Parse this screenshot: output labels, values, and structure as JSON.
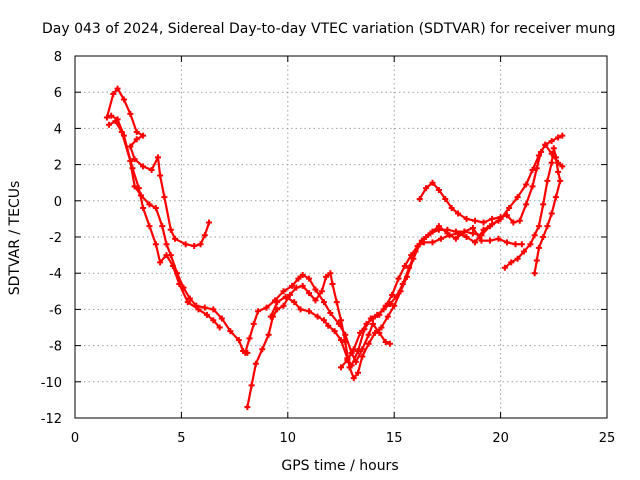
{
  "chart_data": {
    "type": "scatter",
    "title": "Day 043 of 2024, Sidereal Day-to-day VTEC variation (SDTVAR) for receiver mung",
    "xlabel": "GPS time / hours",
    "ylabel": "SDTVAR / TECUs",
    "xlim": [
      0,
      25
    ],
    "ylim": [
      -12,
      8
    ],
    "xticks": [
      "0",
      "5",
      "10",
      "15",
      "20",
      "25"
    ],
    "yticks": [
      "8",
      "6",
      "4",
      "2",
      "0",
      "-2",
      "-4",
      "-6",
      "-8",
      "-10",
      "-12"
    ],
    "grid": true,
    "marker": "plus",
    "color": "#ff0000",
    "series": [
      {
        "points": [
          [
            1.5,
            4.6
          ],
          [
            1.8,
            5.9
          ],
          [
            2.0,
            6.2
          ],
          [
            2.3,
            5.6
          ],
          [
            2.6,
            4.8
          ],
          [
            2.9,
            3.8
          ],
          [
            3.2,
            3.6
          ],
          [
            2.9,
            3.4
          ],
          [
            2.6,
            3.0
          ],
          [
            2.8,
            2.3
          ],
          [
            3.2,
            1.9
          ],
          [
            3.6,
            1.7
          ],
          [
            3.9,
            2.4
          ],
          [
            4.0,
            1.4
          ],
          [
            4.2,
            0.2
          ],
          [
            4.5,
            -1.6
          ],
          [
            4.7,
            -2.1
          ],
          [
            5.2,
            -2.4
          ],
          [
            5.6,
            -2.5
          ],
          [
            5.9,
            -2.4
          ],
          [
            6.1,
            -1.9
          ],
          [
            6.3,
            -1.2
          ]
        ]
      },
      {
        "points": [
          [
            1.6,
            4.2
          ],
          [
            1.9,
            4.4
          ],
          [
            2.2,
            3.8
          ],
          [
            2.6,
            2.2
          ],
          [
            2.8,
            0.8
          ],
          [
            3.1,
            0.3
          ],
          [
            3.5,
            -0.2
          ],
          [
            3.8,
            -0.4
          ],
          [
            4.1,
            -1.4
          ],
          [
            4.3,
            -2.4
          ],
          [
            4.5,
            -3.0
          ],
          [
            4.8,
            -4.0
          ],
          [
            5.1,
            -4.8
          ],
          [
            5.4,
            -5.4
          ],
          [
            5.7,
            -5.8
          ],
          [
            6.1,
            -5.9
          ],
          [
            6.5,
            -6.0
          ],
          [
            6.9,
            -6.5
          ],
          [
            7.3,
            -7.2
          ],
          [
            7.7,
            -7.7
          ],
          [
            7.9,
            -8.3
          ],
          [
            8.1,
            -8.4
          ]
        ]
      },
      {
        "points": [
          [
            1.7,
            4.7
          ],
          [
            2.0,
            4.5
          ],
          [
            2.3,
            3.6
          ],
          [
            2.7,
            1.8
          ],
          [
            3.0,
            0.7
          ],
          [
            3.2,
            -0.4
          ],
          [
            3.5,
            -1.4
          ],
          [
            3.8,
            -2.4
          ],
          [
            4.0,
            -3.4
          ],
          [
            4.3,
            -3.0
          ],
          [
            4.6,
            -3.6
          ],
          [
            4.9,
            -4.6
          ],
          [
            5.3,
            -5.6
          ],
          [
            5.8,
            -6.0
          ],
          [
            6.2,
            -6.3
          ],
          [
            6.5,
            -6.6
          ],
          [
            6.8,
            -7.0
          ]
        ]
      },
      {
        "points": [
          [
            8.0,
            -8.4
          ],
          [
            8.2,
            -7.6
          ],
          [
            8.4,
            -6.8
          ],
          [
            8.6,
            -6.1
          ],
          [
            9.0,
            -5.9
          ],
          [
            9.4,
            -5.5
          ],
          [
            9.8,
            -5.0
          ],
          [
            10.2,
            -4.7
          ],
          [
            10.5,
            -4.3
          ],
          [
            10.7,
            -4.1
          ],
          [
            11.0,
            -4.3
          ],
          [
            11.3,
            -4.9
          ],
          [
            11.7,
            -5.6
          ],
          [
            12.0,
            -6.2
          ],
          [
            12.4,
            -6.8
          ],
          [
            12.7,
            -7.4
          ],
          [
            13.0,
            -8.4
          ],
          [
            13.2,
            -8.9
          ],
          [
            13.5,
            -8.2
          ],
          [
            13.8,
            -7.4
          ],
          [
            14.0,
            -6.8
          ],
          [
            14.3,
            -7.3
          ],
          [
            14.6,
            -7.8
          ],
          [
            14.8,
            -7.9
          ]
        ]
      },
      {
        "points": [
          [
            8.1,
            -11.4
          ],
          [
            8.3,
            -10.2
          ],
          [
            8.5,
            -9.0
          ],
          [
            8.8,
            -8.2
          ],
          [
            9.1,
            -7.4
          ],
          [
            9.3,
            -6.4
          ],
          [
            9.5,
            -6.0
          ],
          [
            9.8,
            -5.8
          ],
          [
            10.1,
            -5.2
          ],
          [
            10.4,
            -4.8
          ],
          [
            10.7,
            -4.7
          ],
          [
            11.0,
            -5.1
          ],
          [
            11.3,
            -5.5
          ],
          [
            11.6,
            -5.0
          ],
          [
            11.8,
            -4.2
          ],
          [
            12.0,
            -4.0
          ],
          [
            12.1,
            -4.6
          ],
          [
            12.3,
            -5.6
          ],
          [
            12.5,
            -6.6
          ],
          [
            12.7,
            -7.8
          ],
          [
            12.9,
            -9.2
          ],
          [
            13.1,
            -9.8
          ],
          [
            13.3,
            -9.5
          ],
          [
            13.5,
            -8.6
          ],
          [
            13.8,
            -7.9
          ],
          [
            14.1,
            -7.3
          ],
          [
            14.4,
            -7.0
          ],
          [
            14.7,
            -6.4
          ],
          [
            15.0,
            -5.8
          ],
          [
            15.3,
            -5.0
          ],
          [
            15.6,
            -4.2
          ],
          [
            15.9,
            -3.2
          ],
          [
            16.2,
            -2.4
          ],
          [
            16.5,
            -2.0
          ],
          [
            16.8,
            -1.7
          ],
          [
            17.1,
            -1.4
          ],
          [
            17.5,
            -1.8
          ],
          [
            17.9,
            -2.1
          ],
          [
            18.3,
            -1.7
          ],
          [
            18.7,
            -1.5
          ],
          [
            19.1,
            -2.2
          ],
          [
            19.5,
            -2.2
          ],
          [
            19.9,
            -2.1
          ],
          [
            20.3,
            -2.3
          ],
          [
            20.7,
            -2.4
          ],
          [
            21.0,
            -2.4
          ]
        ]
      },
      {
        "points": [
          [
            9.2,
            -6.4
          ],
          [
            9.5,
            -5.6
          ],
          [
            9.9,
            -5.3
          ],
          [
            10.3,
            -5.6
          ],
          [
            10.6,
            -6.0
          ],
          [
            11.0,
            -6.1
          ],
          [
            11.4,
            -6.4
          ],
          [
            11.7,
            -6.6
          ],
          [
            11.9,
            -6.9
          ],
          [
            12.2,
            -7.2
          ],
          [
            12.5,
            -7.7
          ],
          [
            12.8,
            -8.7
          ],
          [
            13.0,
            -9.1
          ],
          [
            13.3,
            -8.3
          ],
          [
            13.6,
            -7.1
          ],
          [
            13.9,
            -6.5
          ],
          [
            14.2,
            -6.3
          ],
          [
            14.5,
            -6.0
          ],
          [
            14.8,
            -5.7
          ],
          [
            15.1,
            -5.3
          ],
          [
            15.4,
            -4.6
          ],
          [
            15.7,
            -3.7
          ],
          [
            16.0,
            -2.8
          ],
          [
            16.3,
            -2.2
          ],
          [
            16.7,
            -1.8
          ],
          [
            17.1,
            -1.6
          ],
          [
            17.5,
            -1.6
          ],
          [
            17.9,
            -1.7
          ],
          [
            18.3,
            -1.7
          ],
          [
            18.7,
            -1.8
          ],
          [
            19.1,
            -1.9
          ],
          [
            19.5,
            -1.4
          ],
          [
            19.9,
            -1.1
          ]
        ]
      },
      {
        "points": [
          [
            12.5,
            -9.2
          ],
          [
            12.8,
            -8.8
          ],
          [
            13.1,
            -8.2
          ],
          [
            13.4,
            -7.3
          ],
          [
            13.7,
            -6.8
          ],
          [
            14.0,
            -6.5
          ],
          [
            14.3,
            -6.3
          ],
          [
            14.6,
            -5.8
          ],
          [
            14.9,
            -5.2
          ],
          [
            15.2,
            -4.3
          ],
          [
            15.5,
            -3.6
          ],
          [
            15.8,
            -3.0
          ],
          [
            16.1,
            -2.5
          ],
          [
            16.4,
            -2.3
          ],
          [
            16.8,
            -2.3
          ],
          [
            17.2,
            -2.1
          ],
          [
            17.6,
            -1.9
          ],
          [
            18.0,
            -1.8
          ],
          [
            18.4,
            -2.0
          ],
          [
            18.8,
            -2.3
          ],
          [
            19.2,
            -1.6
          ],
          [
            19.6,
            -1.3
          ],
          [
            20.0,
            -1.0
          ],
          [
            20.4,
            -0.4
          ],
          [
            20.8,
            0.2
          ],
          [
            21.2,
            0.9
          ],
          [
            21.5,
            1.7
          ],
          [
            21.8,
            2.5
          ],
          [
            22.1,
            3.1
          ],
          [
            22.4,
            3.3
          ],
          [
            22.7,
            3.5
          ],
          [
            22.9,
            3.6
          ]
        ]
      },
      {
        "points": [
          [
            16.2,
            0.1
          ],
          [
            16.5,
            0.7
          ],
          [
            16.8,
            1.0
          ],
          [
            17.1,
            0.6
          ],
          [
            17.4,
            0.1
          ],
          [
            17.7,
            -0.4
          ],
          [
            18.0,
            -0.7
          ],
          [
            18.4,
            -1.0
          ],
          [
            18.8,
            -1.1
          ],
          [
            19.2,
            -1.2
          ],
          [
            19.6,
            -1.0
          ],
          [
            20.0,
            -0.9
          ],
          [
            20.3,
            -0.8
          ],
          [
            20.6,
            -1.2
          ],
          [
            20.9,
            -1.1
          ],
          [
            21.2,
            -0.2
          ],
          [
            21.5,
            0.8
          ],
          [
            21.7,
            1.8
          ],
          [
            21.9,
            2.7
          ],
          [
            22.1,
            3.1
          ],
          [
            22.4,
            2.6
          ],
          [
            22.7,
            2.1
          ],
          [
            22.9,
            1.9
          ]
        ]
      },
      {
        "points": [
          [
            20.2,
            -3.7
          ],
          [
            20.5,
            -3.4
          ],
          [
            20.8,
            -3.2
          ],
          [
            21.1,
            -2.8
          ],
          [
            21.4,
            -2.4
          ],
          [
            21.6,
            -1.9
          ],
          [
            21.8,
            -1.4
          ],
          [
            22.0,
            -0.2
          ],
          [
            22.2,
            1.1
          ],
          [
            22.4,
            2.1
          ],
          [
            22.5,
            2.9
          ],
          [
            22.6,
            2.4
          ],
          [
            22.7,
            1.6
          ],
          [
            22.8,
            1.1
          ],
          [
            22.6,
            0.2
          ],
          [
            22.4,
            -0.7
          ],
          [
            22.2,
            -1.4
          ],
          [
            22.0,
            -2.0
          ],
          [
            21.8,
            -2.6
          ],
          [
            21.7,
            -3.3
          ],
          [
            21.6,
            -4.0
          ]
        ]
      }
    ]
  }
}
